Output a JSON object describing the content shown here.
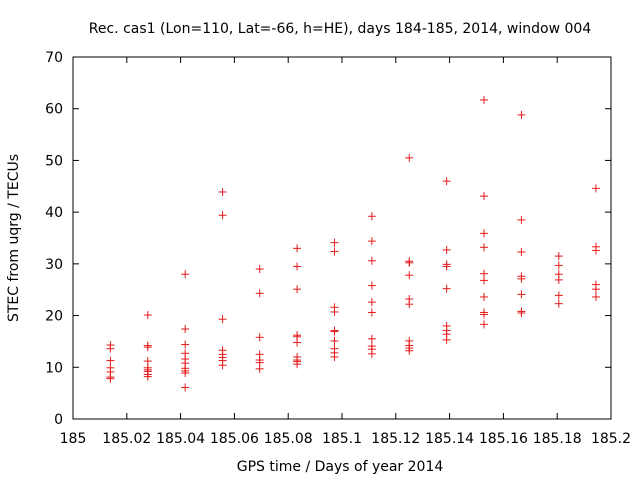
{
  "chart_data": {
    "type": "scatter",
    "title": "Rec. cas1 (Lon=110, Lat=-66, h=HE), days 184-185, 2014, window 004",
    "xlabel": "GPS time / Days of year 2014",
    "ylabel": "STEC from uqrg / TECUs",
    "xlim": [
      185,
      185.2
    ],
    "ylim": [
      0,
      70
    ],
    "xticks": [
      185,
      185.02,
      185.04,
      185.06,
      185.08,
      185.1,
      185.12,
      185.14,
      185.16,
      185.18,
      185.2
    ],
    "xtick_labels": [
      "185",
      "185.02",
      "185.04",
      "185.06",
      "185.08",
      "185.1",
      "185.12",
      "185.14",
      "185.16",
      "185.18",
      "185.2"
    ],
    "yticks": [
      0,
      10,
      20,
      30,
      40,
      50,
      60,
      70
    ],
    "ytick_labels": [
      "0",
      "10",
      "20",
      "30",
      "40",
      "50",
      "60",
      "70"
    ],
    "marker": "+",
    "color": "#e41a1c",
    "grid": false,
    "series": [
      {
        "name": "STEC",
        "points": [
          [
            185.0139,
            14.3
          ],
          [
            185.0139,
            13.6
          ],
          [
            185.0139,
            11.3
          ],
          [
            185.0139,
            9.9
          ],
          [
            185.0139,
            9.1
          ],
          [
            185.0139,
            8.1
          ],
          [
            185.0139,
            7.8
          ],
          [
            185.0278,
            20.1
          ],
          [
            185.0278,
            14.2
          ],
          [
            185.0278,
            13.9
          ],
          [
            185.0278,
            11.2
          ],
          [
            185.0278,
            9.9
          ],
          [
            185.0278,
            9.5
          ],
          [
            185.0278,
            9.2
          ],
          [
            185.0278,
            8.6
          ],
          [
            185.0278,
            8.2
          ],
          [
            185.0417,
            28.0
          ],
          [
            185.0417,
            17.4
          ],
          [
            185.0417,
            14.4
          ],
          [
            185.0417,
            12.7
          ],
          [
            185.0417,
            11.6
          ],
          [
            185.0417,
            10.8
          ],
          [
            185.0417,
            9.8
          ],
          [
            185.0417,
            9.3
          ],
          [
            185.0417,
            8.9
          ],
          [
            185.0417,
            6.1
          ],
          [
            185.0556,
            43.9
          ],
          [
            185.0556,
            39.4
          ],
          [
            185.0556,
            19.3
          ],
          [
            185.0556,
            13.3
          ],
          [
            185.0556,
            12.5
          ],
          [
            185.0556,
            11.9
          ],
          [
            185.0556,
            11.3
          ],
          [
            185.0556,
            10.4
          ],
          [
            185.0694,
            29.0
          ],
          [
            185.0694,
            24.3
          ],
          [
            185.0694,
            15.8
          ],
          [
            185.0694,
            12.5
          ],
          [
            185.0694,
            11.4
          ],
          [
            185.0694,
            10.9
          ],
          [
            185.0694,
            9.7
          ],
          [
            185.0833,
            33.0
          ],
          [
            185.0833,
            29.5
          ],
          [
            185.0833,
            25.1
          ],
          [
            185.0833,
            16.2
          ],
          [
            185.0833,
            15.9
          ],
          [
            185.0833,
            14.8
          ],
          [
            185.0833,
            12.0
          ],
          [
            185.0833,
            11.4
          ],
          [
            185.0833,
            11.1
          ],
          [
            185.0833,
            10.6
          ],
          [
            185.0972,
            34.1
          ],
          [
            185.0972,
            32.4
          ],
          [
            185.0972,
            21.6
          ],
          [
            185.0972,
            20.7
          ],
          [
            185.0972,
            17.1
          ],
          [
            185.0972,
            16.9
          ],
          [
            185.0972,
            15.1
          ],
          [
            185.0972,
            13.6
          ],
          [
            185.0972,
            12.8
          ],
          [
            185.0972,
            12.0
          ],
          [
            185.1111,
            39.2
          ],
          [
            185.1111,
            34.4
          ],
          [
            185.1111,
            30.6
          ],
          [
            185.1111,
            25.8
          ],
          [
            185.1111,
            22.6
          ],
          [
            185.1111,
            20.6
          ],
          [
            185.1111,
            15.5
          ],
          [
            185.1111,
            14.1
          ],
          [
            185.1111,
            13.5
          ],
          [
            185.1111,
            12.6
          ],
          [
            185.125,
            50.5
          ],
          [
            185.125,
            30.5
          ],
          [
            185.125,
            30.2
          ],
          [
            185.125,
            27.8
          ],
          [
            185.125,
            23.2
          ],
          [
            185.125,
            22.2
          ],
          [
            185.125,
            15.1
          ],
          [
            185.125,
            14.2
          ],
          [
            185.125,
            13.7
          ],
          [
            185.125,
            13.2
          ],
          [
            185.1389,
            46.0
          ],
          [
            185.1389,
            32.7
          ],
          [
            185.1389,
            29.9
          ],
          [
            185.1389,
            29.5
          ],
          [
            185.1389,
            25.2
          ],
          [
            185.1389,
            18.0
          ],
          [
            185.1389,
            17.1
          ],
          [
            185.1389,
            16.4
          ],
          [
            185.1389,
            15.3
          ],
          [
            185.1528,
            61.7
          ],
          [
            185.1528,
            43.1
          ],
          [
            185.1528,
            35.9
          ],
          [
            185.1528,
            33.2
          ],
          [
            185.1528,
            28.1
          ],
          [
            185.1528,
            26.8
          ],
          [
            185.1528,
            23.6
          ],
          [
            185.1528,
            20.6
          ],
          [
            185.1528,
            20.2
          ],
          [
            185.1528,
            18.3
          ],
          [
            185.1667,
            58.8
          ],
          [
            185.1667,
            38.5
          ],
          [
            185.1667,
            32.3
          ],
          [
            185.1667,
            27.6
          ],
          [
            185.1667,
            27.1
          ],
          [
            185.1667,
            24.1
          ],
          [
            185.1667,
            20.8
          ],
          [
            185.1667,
            20.5
          ],
          [
            185.1806,
            31.5
          ],
          [
            185.1806,
            29.7
          ],
          [
            185.1806,
            28.0
          ],
          [
            185.1806,
            26.9
          ],
          [
            185.1806,
            23.9
          ],
          [
            185.1806,
            22.3
          ],
          [
            185.1944,
            44.6
          ],
          [
            185.1944,
            33.3
          ],
          [
            185.1944,
            32.6
          ],
          [
            185.1944,
            26.0
          ],
          [
            185.1944,
            25.1
          ],
          [
            185.1944,
            23.6
          ]
        ]
      }
    ]
  }
}
